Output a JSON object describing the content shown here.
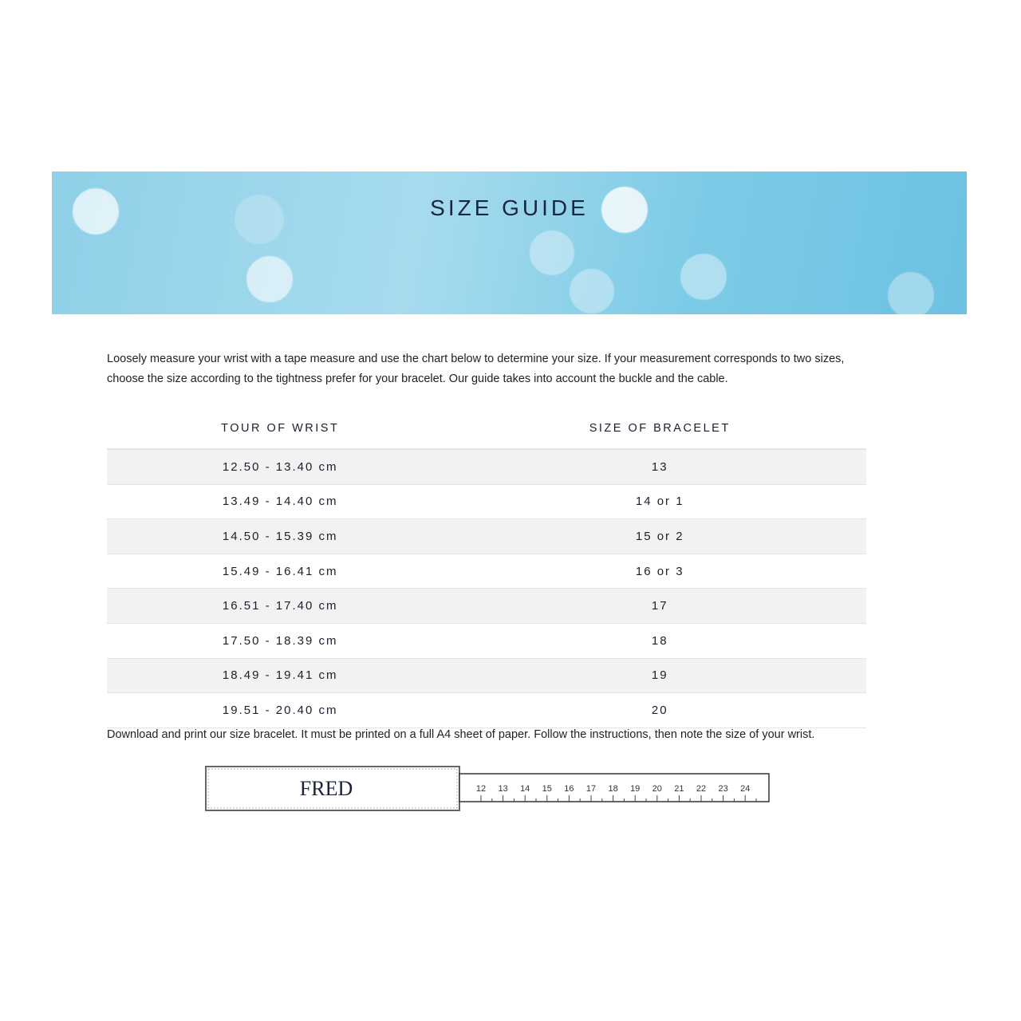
{
  "header": {
    "title": "SIZE GUIDE"
  },
  "intro": "Loosely measure your wrist with a tape measure and use the chart below to determine your size. If your measurement corresponds to two sizes, choose the size according to the tightness prefer for your bracelet. Our guide takes into account the buckle and the cable.",
  "table": {
    "headers": [
      "TOUR OF WRIST",
      "SIZE OF BRACELET"
    ],
    "rows": [
      [
        "12.50 - 13.40 cm",
        "13"
      ],
      [
        "13.49 - 14.40 cm",
        "14 or 1"
      ],
      [
        "14.50 - 15.39 cm",
        "15 or 2"
      ],
      [
        "15.49 - 16.41 cm",
        "16 or 3"
      ],
      [
        "16.51 - 17.40 cm",
        "17"
      ],
      [
        "17.50 - 18.39 cm",
        "18"
      ],
      [
        "18.49 - 19.41 cm",
        "19"
      ],
      [
        "19.51 - 20.40 cm",
        "20"
      ]
    ]
  },
  "download": "Download and print our size bracelet. It must be printed on a full A4 sheet of paper. Follow the instructions, then note the size of your wrist.",
  "ruler": {
    "logo": "FRED",
    "ticks": [
      "12",
      "13",
      "14",
      "15",
      "16",
      "17",
      "18",
      "19",
      "20",
      "21",
      "22",
      "23",
      "24"
    ]
  }
}
